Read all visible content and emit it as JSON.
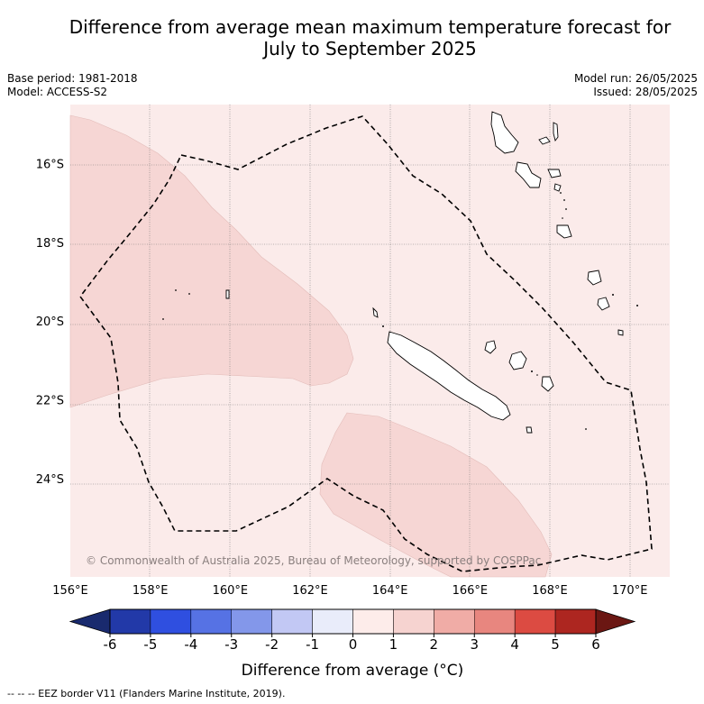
{
  "title_line1": "Difference from average mean maximum temperature forecast for",
  "title_line2": "July to September 2025",
  "base_period": "Base period: 1981-2018",
  "model": "Model: ACCESS-S2",
  "model_run": "Model run: 26/05/2025",
  "issued": "Issued: 28/05/2025",
  "copyright": "© Commonwealth of Australia 2025, Bureau of Meteorology, supported by COSPPac",
  "footer": "--  --  -- EEZ border V11 (Flanders Marine Institute, 2019).",
  "map": {
    "lon_range": [
      156,
      171
    ],
    "lat_range": [
      -26.5,
      -14.5
    ],
    "lon_ticks": [
      156,
      158,
      160,
      162,
      164,
      166,
      168,
      170
    ],
    "lon_labels": [
      "156°E",
      "158°E",
      "160°E",
      "162°E",
      "164°E",
      "166°E",
      "168°E",
      "170°E"
    ],
    "lat_ticks": [
      -16,
      -18,
      -20,
      -22,
      -24
    ],
    "lat_labels": [
      "16°S",
      "18°S",
      "20°S",
      "22°S",
      "24°S"
    ],
    "background_category": "0 to 1",
    "highlighted_category": "1 to 2",
    "highlighted_regions": [
      "west and north-west of New Caledonia",
      "south of New Caledonia"
    ]
  },
  "colorbar": {
    "title": "Difference from average (°C)",
    "ticks": [
      "-6",
      "-5",
      "-4",
      "-3",
      "-2",
      "-1",
      "0",
      "1",
      "2",
      "3",
      "4",
      "5",
      "6"
    ],
    "low_extend_color": "#192a6e",
    "colors": [
      "#2239a8",
      "#2f4fe0",
      "#5672e4",
      "#8397ea",
      "#c2c8f4",
      "#e9ecfa",
      "#fdecea",
      "#f6d3d0",
      "#f0aca6",
      "#e8867f",
      "#dc4b42",
      "#ad2620"
    ],
    "high_extend_color": "#6b1713"
  }
}
